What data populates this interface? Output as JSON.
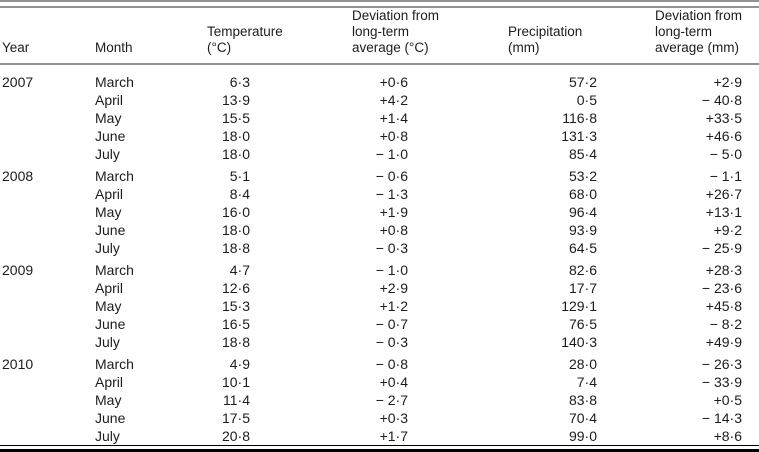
{
  "table": {
    "columns": [
      {
        "label": "Year"
      },
      {
        "label": "Month"
      },
      {
        "label": "Temperature\n(°C)"
      },
      {
        "label": "Deviation from\nlong-term\naverage (°C)"
      },
      {
        "label": "Precipitation\n(mm)"
      },
      {
        "label": "Deviation from\nlong-term\naverage (mm)"
      }
    ],
    "groups": [
      {
        "year": "2007",
        "rows": [
          {
            "month": "March",
            "temperature": "6·3",
            "temp_deviation": "+0·6",
            "precipitation": "57·2",
            "precip_deviation": "+2·9"
          },
          {
            "month": "April",
            "temperature": "13·9",
            "temp_deviation": "+4·2",
            "precipitation": "0·5",
            "precip_deviation": "− 40·8"
          },
          {
            "month": "May",
            "temperature": "15·5",
            "temp_deviation": "+1·4",
            "precipitation": "116·8",
            "precip_deviation": "+33·5"
          },
          {
            "month": "June",
            "temperature": "18·0",
            "temp_deviation": "+0·8",
            "precipitation": "131·3",
            "precip_deviation": "+46·6"
          },
          {
            "month": "July",
            "temperature": "18·0",
            "temp_deviation": "− 1·0",
            "precipitation": "85·4",
            "precip_deviation": "− 5·0"
          }
        ]
      },
      {
        "year": "2008",
        "rows": [
          {
            "month": "March",
            "temperature": "5·1",
            "temp_deviation": "− 0·6",
            "precipitation": "53·2",
            "precip_deviation": "− 1·1"
          },
          {
            "month": "April",
            "temperature": "8·4",
            "temp_deviation": "− 1·3",
            "precipitation": "68·0",
            "precip_deviation": "+26·7"
          },
          {
            "month": "May",
            "temperature": "16·0",
            "temp_deviation": "+1·9",
            "precipitation": "96·4",
            "precip_deviation": "+13·1"
          },
          {
            "month": "June",
            "temperature": "18·0",
            "temp_deviation": "+0·8",
            "precipitation": "93·9",
            "precip_deviation": "+9·2"
          },
          {
            "month": "July",
            "temperature": "18·8",
            "temp_deviation": "− 0·3",
            "precipitation": "64·5",
            "precip_deviation": "− 25·9"
          }
        ]
      },
      {
        "year": "2009",
        "rows": [
          {
            "month": "March",
            "temperature": "4·7",
            "temp_deviation": "− 1·0",
            "precipitation": "82·6",
            "precip_deviation": "+28·3"
          },
          {
            "month": "April",
            "temperature": "12·6",
            "temp_deviation": "+2·9",
            "precipitation": "17·7",
            "precip_deviation": "− 23·6"
          },
          {
            "month": "May",
            "temperature": "15·3",
            "temp_deviation": "+1·2",
            "precipitation": "129·1",
            "precip_deviation": "+45·8"
          },
          {
            "month": "June",
            "temperature": "16·5",
            "temp_deviation": "− 0·7",
            "precipitation": "76·5",
            "precip_deviation": "− 8·2"
          },
          {
            "month": "July",
            "temperature": "18·8",
            "temp_deviation": "− 0·3",
            "precipitation": "140·3",
            "precip_deviation": "+49·9"
          }
        ]
      },
      {
        "year": "2010",
        "rows": [
          {
            "month": "March",
            "temperature": "4·9",
            "temp_deviation": "− 0·8",
            "precipitation": "28·0",
            "precip_deviation": "− 26·3"
          },
          {
            "month": "April",
            "temperature": "10·1",
            "temp_deviation": "+0·4",
            "precipitation": "7·4",
            "precip_deviation": "− 33·9"
          },
          {
            "month": "May",
            "temperature": "11·4",
            "temp_deviation": "− 2·7",
            "precipitation": "83·8",
            "precip_deviation": "+0·5"
          },
          {
            "month": "June",
            "temperature": "17·5",
            "temp_deviation": "+0·3",
            "precipitation": "70·4",
            "precip_deviation": "− 14·3"
          },
          {
            "month": "July",
            "temperature": "20·8",
            "temp_deviation": "+1·7",
            "precipitation": "99·0",
            "precip_deviation": "+8·6"
          }
        ]
      }
    ]
  }
}
